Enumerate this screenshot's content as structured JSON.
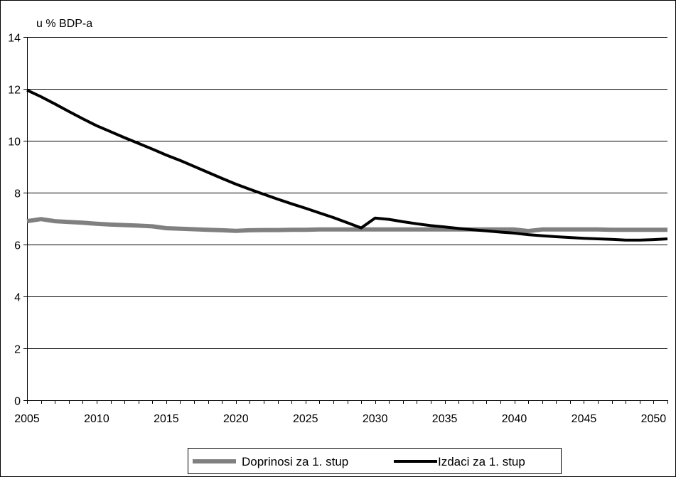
{
  "chart_data": {
    "type": "line",
    "unit_label": "u % BDP-a",
    "title": "",
    "xlabel": "",
    "ylabel": "",
    "xlim": [
      2005,
      2051
    ],
    "ylim": [
      0,
      14
    ],
    "y_ticks": [
      "0",
      "2",
      "4",
      "6",
      "8",
      "10",
      "12",
      "14"
    ],
    "x_ticks": [
      "2005",
      "2010",
      "2015",
      "2020",
      "2025",
      "2030",
      "2035",
      "2040",
      "2045",
      "2050"
    ],
    "grid": "horizontal",
    "legend_position": "bottom",
    "series": [
      {
        "name": "Doprinosi za 1. stup",
        "color": "#808080",
        "x": [
          2005,
          2006,
          2007,
          2008,
          2009,
          2010,
          2011,
          2012,
          2013,
          2014,
          2015,
          2016,
          2017,
          2018,
          2019,
          2020,
          2021,
          2022,
          2023,
          2024,
          2025,
          2026,
          2027,
          2028,
          2029,
          2030,
          2031,
          2032,
          2033,
          2034,
          2035,
          2036,
          2037,
          2038,
          2039,
          2040,
          2041,
          2042,
          2043,
          2044,
          2045,
          2046,
          2047,
          2048,
          2049,
          2050,
          2051
        ],
        "y": [
          6.9,
          6.98,
          6.9,
          6.87,
          6.84,
          6.8,
          6.77,
          6.75,
          6.73,
          6.7,
          6.63,
          6.61,
          6.59,
          6.57,
          6.55,
          6.53,
          6.55,
          6.56,
          6.56,
          6.57,
          6.57,
          6.58,
          6.58,
          6.58,
          6.58,
          6.58,
          6.58,
          6.58,
          6.58,
          6.58,
          6.58,
          6.58,
          6.58,
          6.58,
          6.58,
          6.58,
          6.52,
          6.58,
          6.58,
          6.58,
          6.58,
          6.58,
          6.57,
          6.57,
          6.57,
          6.57,
          6.57
        ]
      },
      {
        "name": "Izdaci za 1. stup",
        "color": "#000000",
        "x": [
          2005,
          2006,
          2007,
          2008,
          2009,
          2010,
          2011,
          2012,
          2013,
          2014,
          2015,
          2016,
          2017,
          2018,
          2019,
          2020,
          2021,
          2022,
          2023,
          2024,
          2025,
          2026,
          2027,
          2028,
          2029,
          2030,
          2031,
          2032,
          2033,
          2034,
          2035,
          2036,
          2037,
          2038,
          2039,
          2040,
          2041,
          2042,
          2043,
          2044,
          2045,
          2046,
          2047,
          2048,
          2049,
          2050,
          2051
        ],
        "y": [
          11.95,
          11.7,
          11.42,
          11.13,
          10.85,
          10.58,
          10.35,
          10.12,
          9.9,
          9.68,
          9.45,
          9.24,
          9.01,
          8.78,
          8.55,
          8.33,
          8.13,
          7.94,
          7.75,
          7.57,
          7.4,
          7.22,
          7.04,
          6.84,
          6.64,
          7.02,
          6.97,
          6.88,
          6.8,
          6.73,
          6.68,
          6.62,
          6.57,
          6.53,
          6.48,
          6.44,
          6.38,
          6.34,
          6.3,
          6.27,
          6.24,
          6.22,
          6.2,
          6.17,
          6.17,
          6.19,
          6.22
        ]
      }
    ]
  }
}
